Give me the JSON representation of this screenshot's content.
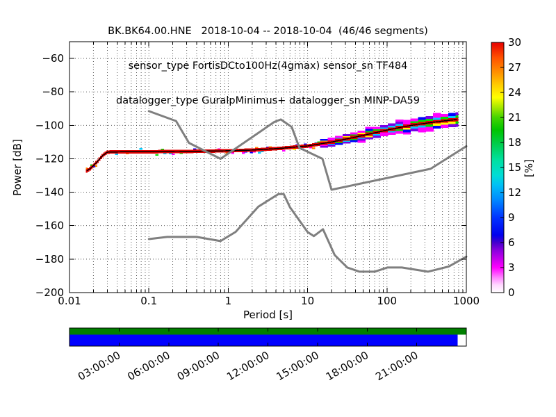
{
  "chart_data": {
    "type": "heatmap",
    "title_lines": [
      "BK.BK64.00.HNE   2018-10-04 -- 2018-10-04  (46/46 segments)",
      "sensor_type FortisDCto100Hz(4gmax) sensor_sn TF484",
      "datalogger_type GuralpMinimus+ datalogger_sn MINP-DA59"
    ],
    "xlabel": "Period [s]",
    "ylabel": "Power [dB]",
    "xscale": "log",
    "xlim": [
      0.01,
      1000
    ],
    "ylim": [
      -200,
      -50
    ],
    "grid": true,
    "xticks": [
      0.01,
      0.1,
      1,
      10,
      100,
      1000
    ],
    "xtick_labels": [
      "0.01",
      "0.1",
      "1",
      "10",
      "100",
      "1000"
    ],
    "yticks": [
      -60,
      -80,
      -100,
      -120,
      -140,
      -160,
      -180,
      -200
    ],
    "ytick_labels": [
      "−60",
      "−80",
      "−100",
      "−120",
      "−140",
      "−160",
      "−180",
      "−200"
    ],
    "colorbar": {
      "label": "[%]",
      "min": 0,
      "max": 30,
      "ticks": [
        0,
        3,
        6,
        9,
        12,
        15,
        18,
        21,
        24,
        27,
        30
      ],
      "tick_labels": [
        "0",
        "3",
        "6",
        "9",
        "12",
        "15",
        "18",
        "21",
        "24",
        "27",
        "30"
      ],
      "gradient_stops": [
        [
          0.0,
          "#ffffff"
        ],
        [
          0.03,
          "#ffd9ff"
        ],
        [
          0.06,
          "#ff85ff"
        ],
        [
          0.1,
          "#ff00ff"
        ],
        [
          0.13,
          "#cc00ee"
        ],
        [
          0.17,
          "#8800dd"
        ],
        [
          0.2,
          "#4400cc"
        ],
        [
          0.23,
          "#0000ee"
        ],
        [
          0.3,
          "#0033ff"
        ],
        [
          0.37,
          "#0088ff"
        ],
        [
          0.43,
          "#00c0f5"
        ],
        [
          0.47,
          "#00ddd5"
        ],
        [
          0.53,
          "#00e0a0"
        ],
        [
          0.6,
          "#00cc44"
        ],
        [
          0.65,
          "#00c400"
        ],
        [
          0.7,
          "#44d400"
        ],
        [
          0.74,
          "#a5e800"
        ],
        [
          0.78,
          "#ffff00"
        ],
        [
          0.83,
          "#ffcc00"
        ],
        [
          0.88,
          "#ff9100"
        ],
        [
          0.94,
          "#ff5000"
        ],
        [
          1.0,
          "#e60000"
        ]
      ]
    },
    "series": [
      {
        "name": "noise-model-high",
        "color": "#7f7f7f",
        "points": [
          [
            0.1,
            -91.5
          ],
          [
            0.22,
            -97.4
          ],
          [
            0.32,
            -110.5
          ],
          [
            0.8,
            -120.0
          ],
          [
            3.8,
            -98.0
          ],
          [
            4.6,
            -96.5
          ],
          [
            6.3,
            -101.0
          ],
          [
            7.9,
            -113.5
          ],
          [
            15.4,
            -120.0
          ],
          [
            20.0,
            -138.5
          ],
          [
            354.8,
            -126.0
          ],
          [
            1000,
            -112.5
          ]
        ]
      },
      {
        "name": "noise-model-low",
        "color": "#7f7f7f",
        "points": [
          [
            0.1,
            -168.0
          ],
          [
            0.17,
            -166.7
          ],
          [
            0.4,
            -166.7
          ],
          [
            0.8,
            -169.2
          ],
          [
            1.24,
            -163.7
          ],
          [
            2.4,
            -148.6
          ],
          [
            4.3,
            -141.1
          ],
          [
            5.0,
            -141.1
          ],
          [
            6.0,
            -149.0
          ],
          [
            10.0,
            -163.8
          ],
          [
            12.0,
            -166.2
          ],
          [
            15.6,
            -162.1
          ],
          [
            21.9,
            -177.5
          ],
          [
            31.6,
            -185.0
          ],
          [
            45.0,
            -187.5
          ],
          [
            70.0,
            -187.5
          ],
          [
            101.0,
            -185.0
          ],
          [
            154.0,
            -185.0
          ],
          [
            328.0,
            -187.5
          ],
          [
            600.0,
            -184.4
          ],
          [
            1000,
            -178.5
          ]
        ]
      }
    ],
    "ppsd_band": {
      "mode_color": "#000000",
      "core_color": "#e00000",
      "speck_palette": [
        "#ff00ff",
        "#00ccff",
        "#0000ff",
        "#00dd00",
        "#ffff00",
        "#7a00e6",
        "#ff8800"
      ],
      "outer_palette": [
        "#7a00e6",
        "#ff00ff",
        "#0000ff"
      ],
      "mid_palette": [
        "#00ccff",
        "#00dd00",
        "#ffff00",
        "#ff00ff"
      ],
      "mode": [
        [
          0.016,
          -127.5
        ],
        [
          0.018,
          -126.0
        ],
        [
          0.02,
          -124.0
        ],
        [
          0.023,
          -121.0
        ],
        [
          0.026,
          -118.0
        ],
        [
          0.03,
          -116.0
        ],
        [
          0.05,
          -115.8
        ],
        [
          0.1,
          -115.8
        ],
        [
          0.3,
          -115.6
        ],
        [
          1.0,
          -115.2
        ],
        [
          2.0,
          -114.8
        ],
        [
          5.0,
          -113.6
        ],
        [
          10.0,
          -112.3
        ],
        [
          20.0,
          -110.0
        ],
        [
          40.0,
          -107.0
        ],
        [
          70.0,
          -104.5
        ],
        [
          100.0,
          -102.8
        ],
        [
          200.0,
          -100.0
        ],
        [
          400.0,
          -98.0
        ],
        [
          600.0,
          -97.0
        ],
        [
          780.0,
          -96.5
        ]
      ],
      "spread_db": [
        [
          0.016,
          1.5
        ],
        [
          0.03,
          1.8
        ],
        [
          0.1,
          1.6
        ],
        [
          1.0,
          1.8
        ],
        [
          5.0,
          2.2
        ],
        [
          10.0,
          2.4
        ],
        [
          30.0,
          2.8
        ],
        [
          100.0,
          3.4
        ],
        [
          300.0,
          4.0
        ],
        [
          780.0,
          4.3
        ]
      ]
    },
    "timeline": {
      "total_hours": 24,
      "tick_hours": [
        3,
        6,
        9,
        12,
        15,
        18,
        21
      ],
      "tick_labels": [
        "03:00:00",
        "06:00:00",
        "09:00:00",
        "12:00:00",
        "15:00:00",
        "18:00:00",
        "21:00:00"
      ],
      "green_color": "#007f00",
      "blue_color": "#0000ff",
      "blue_coverage_fraction": 0.978
    }
  }
}
